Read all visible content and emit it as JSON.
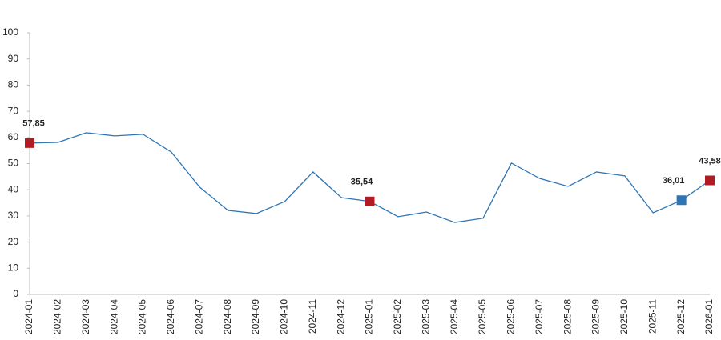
{
  "chart_data": {
    "type": "line",
    "categories": [
      "2024-01",
      "2024-02",
      "2024-03",
      "2024-04",
      "2024-05",
      "2024-06",
      "2024-07",
      "2024-08",
      "2024-09",
      "2024-10",
      "2024-11",
      "2024-12",
      "2025-01",
      "2025-02",
      "2025-03",
      "2025-04",
      "2025-05",
      "2025-06",
      "2025-07",
      "2025-08",
      "2025-09",
      "2025-10",
      "2025-11",
      "2025-12",
      "2026-01"
    ],
    "series": [
      {
        "color": "#2e75b6",
        "values": [
          57.85,
          58.1,
          61.8,
          60.6,
          61.2,
          54.4,
          41.0,
          32.1,
          30.9,
          35.5,
          46.8,
          37.0,
          35.54,
          29.7,
          31.5,
          27.5,
          29.1,
          50.2,
          44.3,
          41.3,
          46.8,
          45.3,
          31.2,
          36.01,
          43.58
        ],
        "value_labels": [
          "57,85",
          null,
          null,
          null,
          null,
          null,
          null,
          null,
          null,
          null,
          null,
          null,
          "35,54",
          null,
          null,
          null,
          null,
          null,
          null,
          null,
          null,
          null,
          null,
          "36,01",
          "43,58"
        ],
        "marker_colors": [
          "#b01c24",
          null,
          null,
          null,
          null,
          null,
          null,
          null,
          null,
          null,
          null,
          null,
          "#b01c24",
          null,
          null,
          null,
          null,
          null,
          null,
          null,
          null,
          null,
          null,
          "#2e75b6",
          "#b01c24"
        ]
      }
    ],
    "ylim": [
      0,
      100
    ],
    "yticks": [
      0,
      10,
      20,
      30,
      40,
      50,
      60,
      70,
      80,
      90,
      100
    ],
    "grid": false
  }
}
